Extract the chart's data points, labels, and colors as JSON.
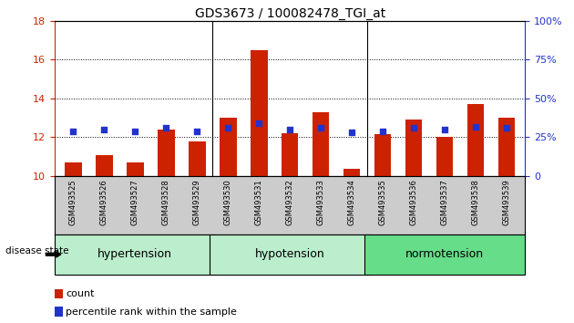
{
  "title": "GDS3673 / 100082478_TGI_at",
  "samples": [
    "GSM493525",
    "GSM493526",
    "GSM493527",
    "GSM493528",
    "GSM493529",
    "GSM493530",
    "GSM493531",
    "GSM493532",
    "GSM493533",
    "GSM493534",
    "GSM493535",
    "GSM493536",
    "GSM493537",
    "GSM493538",
    "GSM493539"
  ],
  "red_values": [
    10.7,
    11.1,
    10.7,
    12.4,
    11.8,
    13.0,
    16.5,
    12.2,
    13.3,
    10.35,
    12.15,
    12.9,
    12.0,
    13.7,
    13.0
  ],
  "blue_pct": [
    29,
    30,
    29,
    31,
    29,
    31,
    34,
    30,
    31,
    28,
    29,
    31,
    30,
    32,
    31
  ],
  "baseline": 10,
  "ylim_left": [
    10,
    18
  ],
  "ylim_right": [
    0,
    100
  ],
  "yticks_left": [
    10,
    12,
    14,
    16,
    18
  ],
  "yticks_right": [
    0,
    25,
    50,
    75,
    100
  ],
  "bar_color": "#CC2200",
  "dot_color": "#2233CC",
  "left_axis_color": "#CC2200",
  "right_axis_color": "#2233CC",
  "groups": [
    {
      "name": "hypertension",
      "start": 0,
      "end": 4,
      "color": "#AAEEBB"
    },
    {
      "name": "hypotension",
      "start": 5,
      "end": 9,
      "color": "#AAEEBB"
    },
    {
      "name": "normotension",
      "start": 10,
      "end": 14,
      "color": "#66DD88"
    }
  ]
}
